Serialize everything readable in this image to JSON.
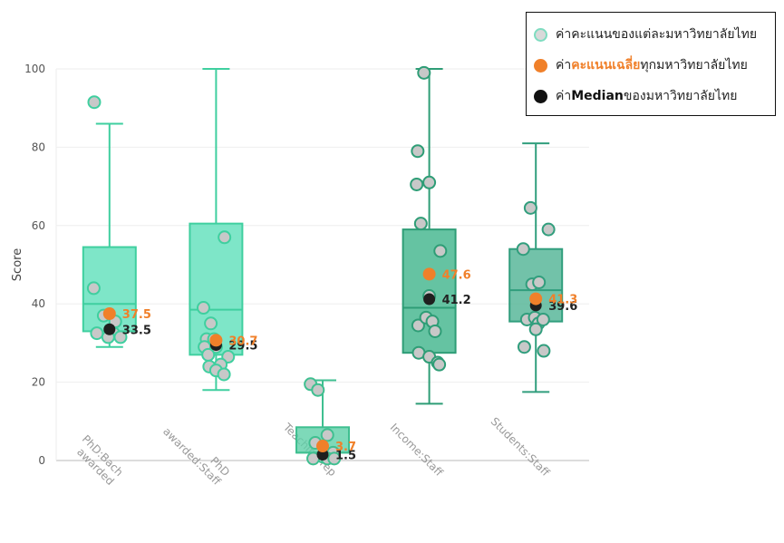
{
  "chart_data": {
    "type": "box",
    "ylabel": "Score",
    "ylim": [
      0,
      100
    ],
    "yticks": [
      0,
      20,
      40,
      60,
      80,
      100
    ],
    "grid": true,
    "legend_position": "top-right",
    "legend": {
      "points": "ค่าคะแนนของแต่ละมหาวิทยาลัยไทย",
      "mean_prefix": "ค่า",
      "mean_highlight": "คะแนนเฉลี่ย",
      "mean_suffix": "ทุกมหาวิทยาลัยไทย",
      "median_prefix": "ค่า",
      "median_highlight": "Median",
      "median_suffix": "ของมหาวิทยาลัยไทย"
    },
    "colors": {
      "mean": "#f0802a",
      "median_marker": "#1f1f1f",
      "point_fill": "#c8c8c8",
      "point_stroke": "#3aa57f"
    },
    "categories": [
      "PhD:Bach awarded",
      "PhD awarded:Staff",
      "Teaching rep",
      "Income:Staff",
      "Students:Staff"
    ],
    "category_label_lines": [
      [
        "PhD:Bach",
        "awarded"
      ],
      [
        "PhD",
        "awarded:Staff"
      ],
      [
        "Teaching rep"
      ],
      [
        "Income:Staff"
      ],
      [
        "Students:Staff"
      ]
    ],
    "series": [
      {
        "category": "PhD:Bach awarded",
        "box_color": "#5ee0ba",
        "line_color": "#3fcf9f",
        "whisker_low": 29,
        "q1": 33,
        "median": 40,
        "q3": 54.5,
        "whisker_high": 86,
        "mean": 37.5,
        "mean_label": "37.5",
        "median_marker": 33.5,
        "median_label": "33.5",
        "points": [
          [
            -0.58,
            91.5
          ],
          [
            -0.6,
            44
          ],
          [
            -0.22,
            37
          ],
          [
            0.22,
            35.5
          ],
          [
            -0.48,
            32.5
          ],
          [
            0.15,
            32.5
          ],
          [
            -0.05,
            31.5
          ],
          [
            0.42,
            31.5
          ]
        ]
      },
      {
        "category": "PhD awarded:Staff",
        "box_color": "#5ee0ba",
        "line_color": "#3fcf9f",
        "whisker_low": 18,
        "q1": 27,
        "median": 38.5,
        "q3": 60.5,
        "whisker_high": 100,
        "mean": 30.7,
        "mean_label": "30.7",
        "median_marker": 29.5,
        "median_label": "29.5",
        "points": [
          [
            0.32,
            57
          ],
          [
            -0.48,
            39
          ],
          [
            -0.2,
            35
          ],
          [
            -0.36,
            31
          ],
          [
            -0.08,
            31
          ],
          [
            -0.44,
            29
          ],
          [
            0.0,
            29
          ],
          [
            -0.3,
            27
          ],
          [
            0.46,
            26.5
          ],
          [
            -0.26,
            24
          ],
          [
            0.18,
            24.5
          ],
          [
            0.0,
            23
          ],
          [
            0.3,
            22
          ]
        ]
      },
      {
        "category": "Teaching rep",
        "box_color": "#5ecfa8",
        "line_color": "#3fbf90",
        "whisker_low": 0,
        "q1": 2,
        "median": 2,
        "q3": 8.5,
        "whisker_high": 20.5,
        "mean": 3.7,
        "mean_label": "3.7",
        "median_marker": 1.5,
        "median_label": "1.5",
        "points": [
          [
            -0.46,
            19.5
          ],
          [
            -0.18,
            18
          ],
          [
            0.18,
            6.5
          ],
          [
            -0.28,
            4.5
          ],
          [
            0.4,
            2
          ],
          [
            0.0,
            1
          ],
          [
            -0.36,
            0.5
          ],
          [
            0.18,
            0.5
          ],
          [
            0.44,
            0.5
          ]
        ]
      },
      {
        "category": "Income:Staff",
        "box_color": "#3fb48b",
        "line_color": "#2e9d76",
        "whisker_low": 14.5,
        "q1": 27.5,
        "median": 39,
        "q3": 59,
        "whisker_high": 100,
        "mean": 47.6,
        "mean_label": "47.6",
        "median_marker": 41.2,
        "median_label": "41.2",
        "points": [
          [
            -0.2,
            99
          ],
          [
            -0.44,
            79
          ],
          [
            -0.48,
            70.5
          ],
          [
            0.0,
            71
          ],
          [
            -0.32,
            60.5
          ],
          [
            0.42,
            53.5
          ],
          [
            0.0,
            42
          ],
          [
            -0.42,
            34.5
          ],
          [
            -0.12,
            36.5
          ],
          [
            0.12,
            35.5
          ],
          [
            0.22,
            33
          ],
          [
            -0.4,
            27.5
          ],
          [
            0.0,
            26.5
          ],
          [
            0.32,
            25
          ],
          [
            0.38,
            24.5
          ]
        ]
      },
      {
        "category": "Students:Staff",
        "box_color": "#4fb393",
        "line_color": "#319e7d",
        "whisker_low": 17.5,
        "q1": 35.5,
        "median": 43.5,
        "q3": 54,
        "whisker_high": 81,
        "mean": 41.3,
        "mean_label": "41.3",
        "median_marker": 39.6,
        "median_label": "39.6",
        "points": [
          [
            -0.2,
            64.5
          ],
          [
            0.48,
            59
          ],
          [
            -0.48,
            54
          ],
          [
            -0.14,
            45
          ],
          [
            0.12,
            45.5
          ],
          [
            -0.34,
            36
          ],
          [
            -0.04,
            36.5
          ],
          [
            0.1,
            35
          ],
          [
            0.28,
            36
          ],
          [
            0.0,
            33.5
          ],
          [
            -0.44,
            29
          ],
          [
            0.3,
            28
          ]
        ]
      }
    ]
  }
}
